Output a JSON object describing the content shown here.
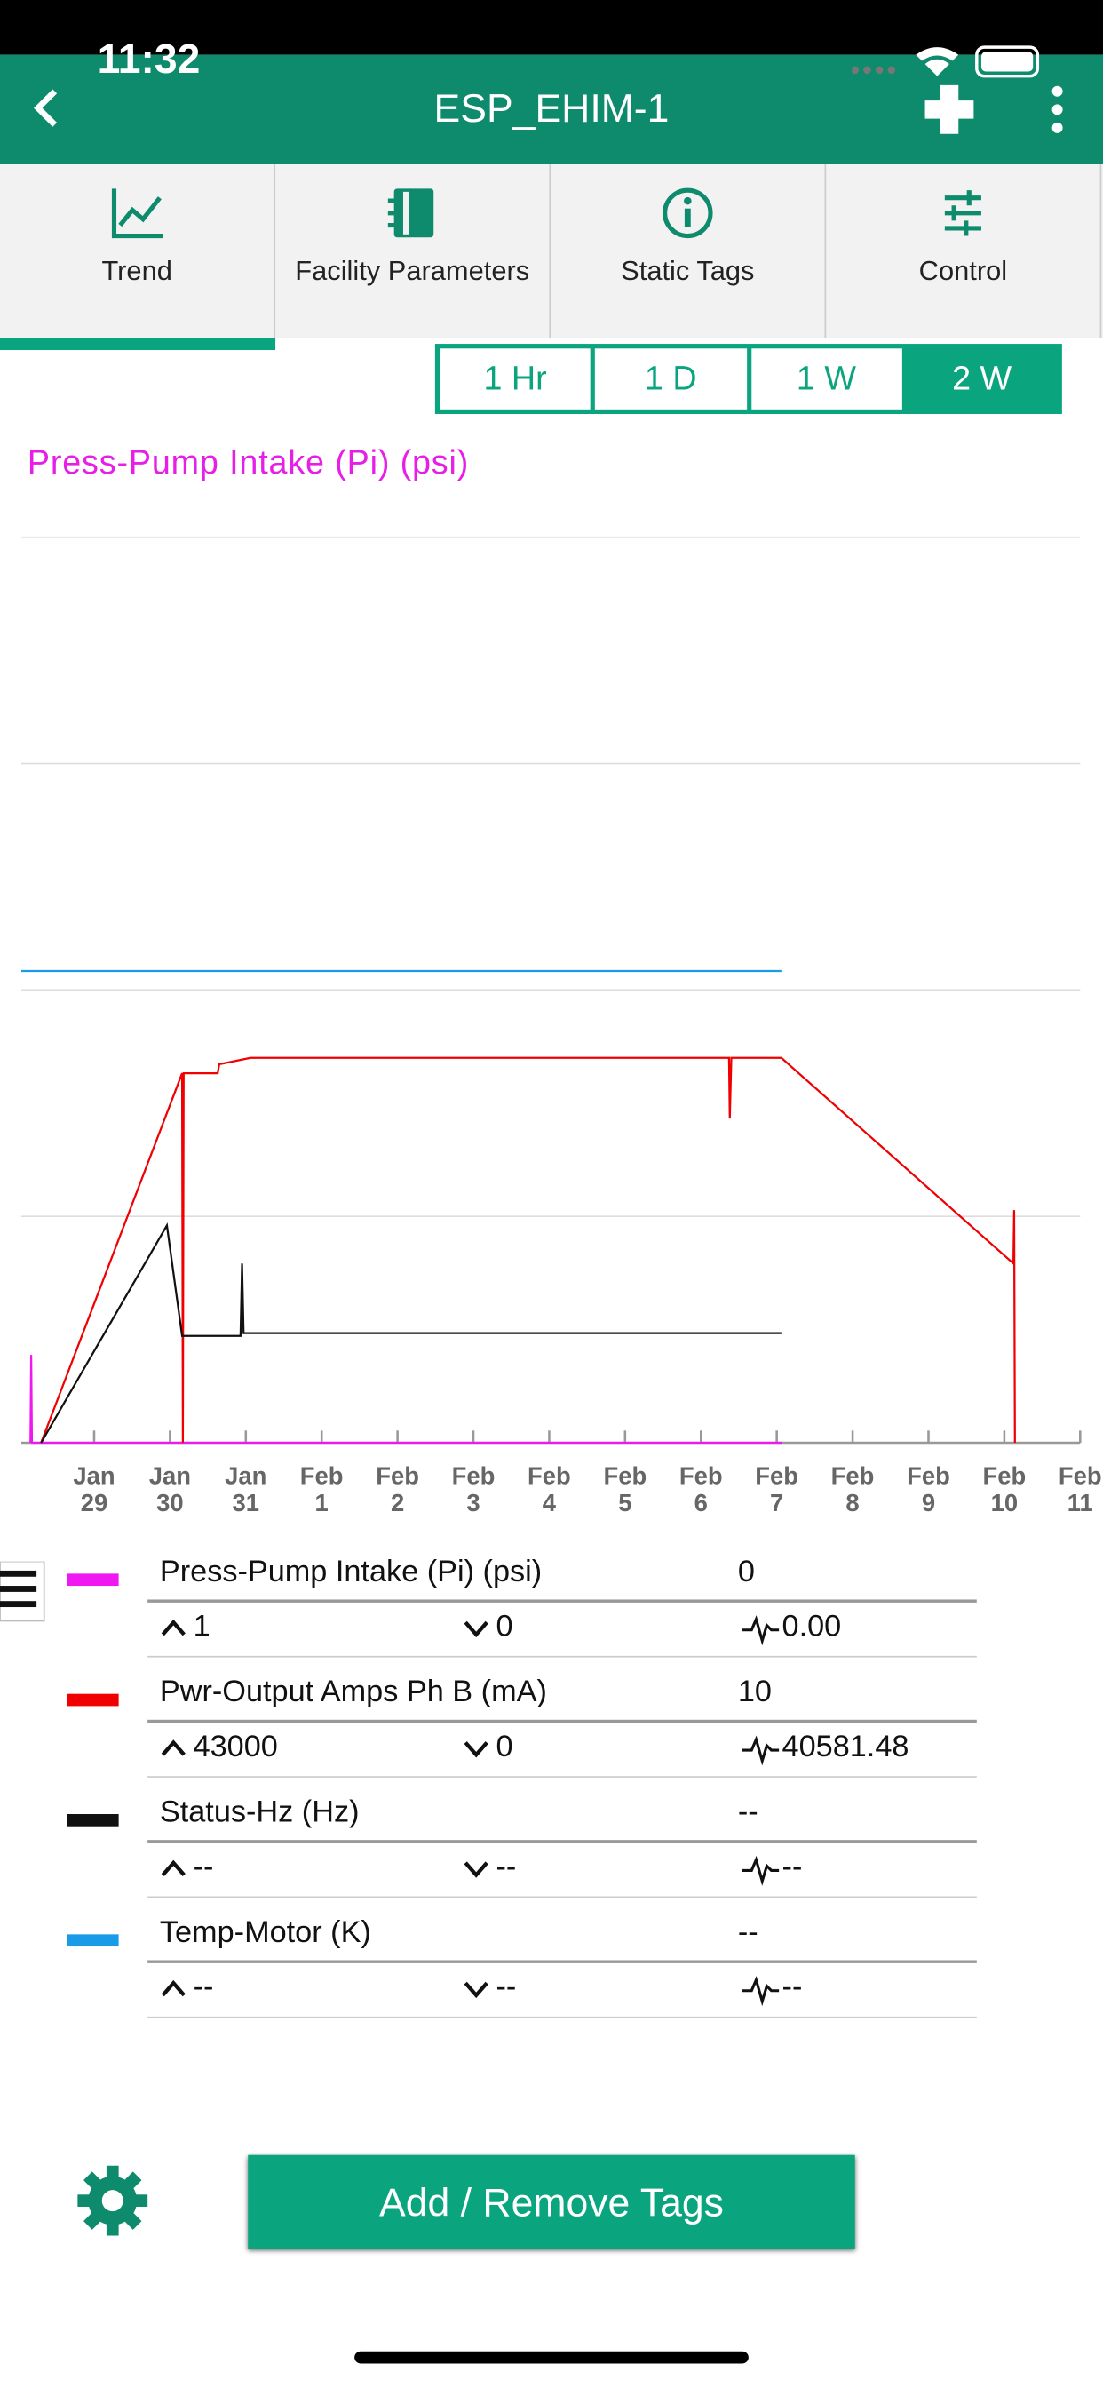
{
  "status_bar": {
    "time": "11:32"
  },
  "header": {
    "title": "ESP_EHIM-1"
  },
  "tabs": [
    {
      "label": "Trend",
      "selected": true
    },
    {
      "label": "Facility Parameters",
      "selected": false
    },
    {
      "label": "Static Tags",
      "selected": false
    },
    {
      "label": "Control",
      "selected": false
    }
  ],
  "range_buttons": [
    {
      "label": "1 Hr",
      "selected": false
    },
    {
      "label": "1 D",
      "selected": false
    },
    {
      "label": "1 W",
      "selected": false
    },
    {
      "label": "2 W",
      "selected": true
    }
  ],
  "chart_data": {
    "type": "line",
    "title": "Press-Pump Intake (Pi) (psi)",
    "title_color": "#e61ee6",
    "xlim": [
      -0.96,
      13
    ],
    "xticks": [
      {
        "value": 0,
        "label": "Jan\n29"
      },
      {
        "value": 1,
        "label": "Jan\n30"
      },
      {
        "value": 2,
        "label": "Jan\n31"
      },
      {
        "value": 3,
        "label": "Feb\n1"
      },
      {
        "value": 4,
        "label": "Feb\n2"
      },
      {
        "value": 5,
        "label": "Feb\n3"
      },
      {
        "value": 6,
        "label": "Feb\n4"
      },
      {
        "value": 7,
        "label": "Feb\n5"
      },
      {
        "value": 8,
        "label": "Feb\n6"
      },
      {
        "value": 9,
        "label": "Feb\n7"
      },
      {
        "value": 10,
        "label": "Feb\n8"
      },
      {
        "value": 11,
        "label": "Feb\n9"
      },
      {
        "value": 12,
        "label": "Feb\n10"
      },
      {
        "value": 13,
        "label": "Feb\n11"
      }
    ],
    "ylim": [
      0,
      100000
    ],
    "yticks": [
      0,
      25000,
      50000,
      75000,
      100000
    ],
    "grid": true,
    "series": [
      {
        "name": "Press-Pump Intake (Pi) (psi)",
        "color": "#f018f0",
        "x": [
          -0.84,
          -0.83,
          -0.82,
          9.06
        ],
        "values": [
          0,
          9700,
          0,
          0
        ]
      },
      {
        "name": "Pwr-Output Amps Ph B (mA)",
        "color": "#f00000",
        "x": [
          -0.7,
          1.16,
          1.17,
          1.18,
          1.63,
          1.65,
          2.06,
          8.37,
          8.38,
          8.4,
          9.06,
          12.12,
          12.13,
          12.14
        ],
        "values": [
          0,
          40800,
          0,
          40800,
          40800,
          41800,
          42500,
          42500,
          35800,
          42500,
          42500,
          19800,
          25700,
          0
        ]
      },
      {
        "name": "Status-Hz (Hz)",
        "color": "#111111",
        "x": [
          -0.7,
          0.96,
          1.16,
          1.93,
          1.95,
          1.97,
          9.06
        ],
        "values": [
          0,
          24000,
          11800,
          11800,
          19800,
          12100,
          12100
        ]
      },
      {
        "name": "Temp-Motor (K)",
        "color": "#1a9be8",
        "x": [
          -0.96,
          9.06
        ],
        "values": [
          52100,
          52100
        ]
      }
    ]
  },
  "legend_table": {
    "rows": [
      {
        "value": 0,
        "max": 1,
        "min": 0,
        "avg": "0.00"
      },
      {
        "value": 10,
        "max": 43000,
        "min": 0,
        "avg": 40581.48
      },
      {
        "value": "--",
        "max": "--",
        "min": "--",
        "avg": "--"
      },
      {
        "value": "--",
        "max": "--",
        "min": "--",
        "avg": "--"
      }
    ]
  },
  "button": {
    "label": "Add / Remove Tags"
  }
}
